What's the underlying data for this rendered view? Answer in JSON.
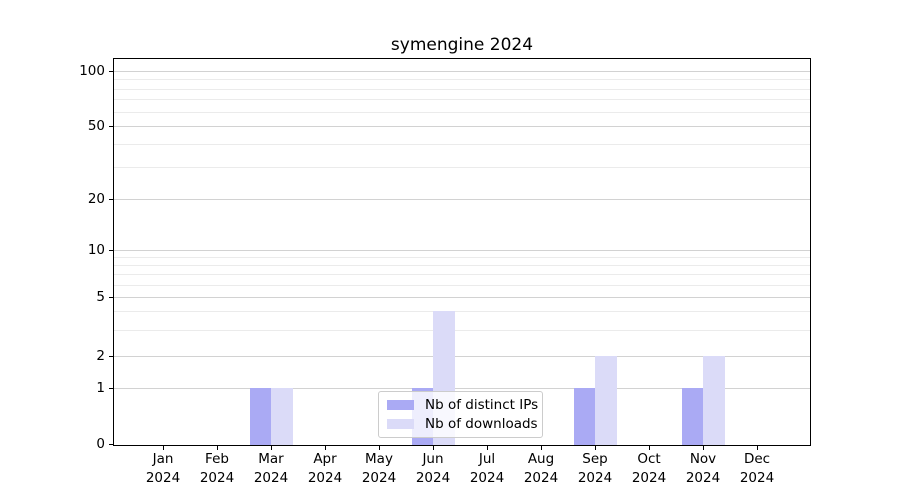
{
  "chart_data": {
    "type": "bar",
    "title": "symengine 2024",
    "months": [
      "Jan",
      "Feb",
      "Mar",
      "Apr",
      "May",
      "Jun",
      "Jul",
      "Aug",
      "Sep",
      "Oct",
      "Nov",
      "Dec"
    ],
    "year": "2024",
    "series": [
      {
        "name": "Nb of distinct IPs",
        "color": "#aaaaf4",
        "values": [
          0,
          0,
          1,
          0,
          0,
          1,
          0,
          0,
          1,
          0,
          1,
          0
        ]
      },
      {
        "name": "Nb of downloads",
        "color": "#dbdbf8",
        "values": [
          0,
          0,
          1,
          0,
          0,
          4,
          0,
          0,
          2,
          0,
          2,
          0
        ]
      }
    ],
    "y_ticks": [
      0,
      1,
      2,
      5,
      10,
      20,
      50,
      100
    ],
    "ylim": [
      0,
      160
    ],
    "y_scale": "log above 1, linear 0-1",
    "grid": "horizontal major + log minor gridlines",
    "legend_location": "lower center"
  }
}
